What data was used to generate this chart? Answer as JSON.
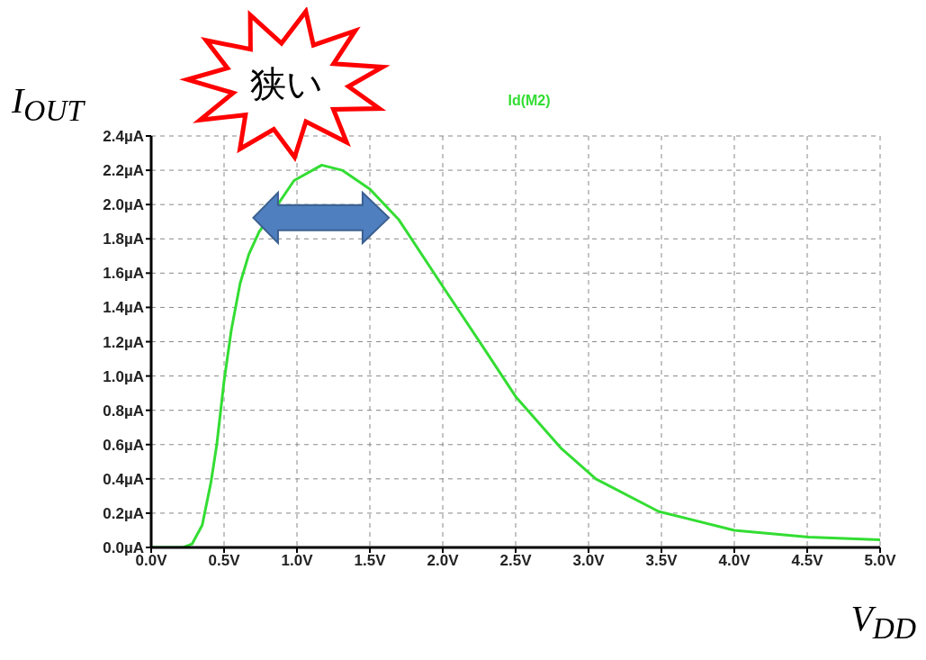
{
  "chart_data": {
    "type": "line",
    "ylabel": "I$_{OUT}$",
    "xlabel": "V$_{DD}$",
    "annotations": [
      "狭い"
    ],
    "series": [
      {
        "name": "Id(M2)",
        "color": "#33dd33",
        "x": [
          0,
          0.22,
          0.28,
          0.35,
          0.41,
          0.45,
          0.5,
          0.55,
          0.61,
          0.67,
          0.74,
          0.84,
          0.98,
          1.17,
          1.31,
          1.5,
          1.7,
          2.01,
          2.26,
          2.5,
          2.81,
          3.05,
          3.48,
          4.0,
          4.51,
          5.0
        ],
        "values": [
          0,
          0,
          0.02,
          0.13,
          0.38,
          0.6,
          0.97,
          1.27,
          1.54,
          1.71,
          1.84,
          null,
          2.14,
          2.23,
          2.2,
          2.09,
          1.91,
          1.51,
          1.19,
          0.88,
          0.58,
          0.4,
          0.21,
          0.1,
          0.06,
          0.045
        ]
      }
    ],
    "xlim": [
      0,
      5
    ],
    "xticks": [
      {
        "value": 0,
        "label": "0.0V"
      },
      {
        "value": 0.5,
        "label": "0.5V"
      },
      {
        "value": 1,
        "label": "1.0V"
      },
      {
        "value": 1.5,
        "label": "1.5V"
      },
      {
        "value": 2,
        "label": "2.0V"
      },
      {
        "value": 2.5,
        "label": "2.5V"
      },
      {
        "value": 3,
        "label": "3.0V"
      },
      {
        "value": 3.5,
        "label": "3.5V"
      },
      {
        "value": 4,
        "label": "4.0V"
      },
      {
        "value": 4.5,
        "label": "4.5V"
      },
      {
        "value": 5,
        "label": "5.0V"
      }
    ],
    "ylim": [
      0,
      2.4
    ],
    "yticks": [
      {
        "value": 0,
        "label": "0.0µA"
      },
      {
        "value": 0.2,
        "label": "0.2µA"
      },
      {
        "value": 0.4,
        "label": "0.4µA"
      },
      {
        "value": 0.6,
        "label": "0.6µA"
      },
      {
        "value": 0.8,
        "label": "0.8µA"
      },
      {
        "value": 1,
        "label": "1.0µA"
      },
      {
        "value": 1.2,
        "label": "1.2µA"
      },
      {
        "value": 1.4,
        "label": "1.4µA"
      },
      {
        "value": 1.6,
        "label": "1.6µA"
      },
      {
        "value": 1.8,
        "label": "1.8µA"
      },
      {
        "value": 2,
        "label": "2.0µA"
      },
      {
        "value": 2.2,
        "label": "2.2µA"
      },
      {
        "value": 2.4,
        "label": "2.4µA"
      }
    ],
    "grid": true,
    "legend": "top",
    "marker": "none",
    "line_style": "solid"
  }
}
